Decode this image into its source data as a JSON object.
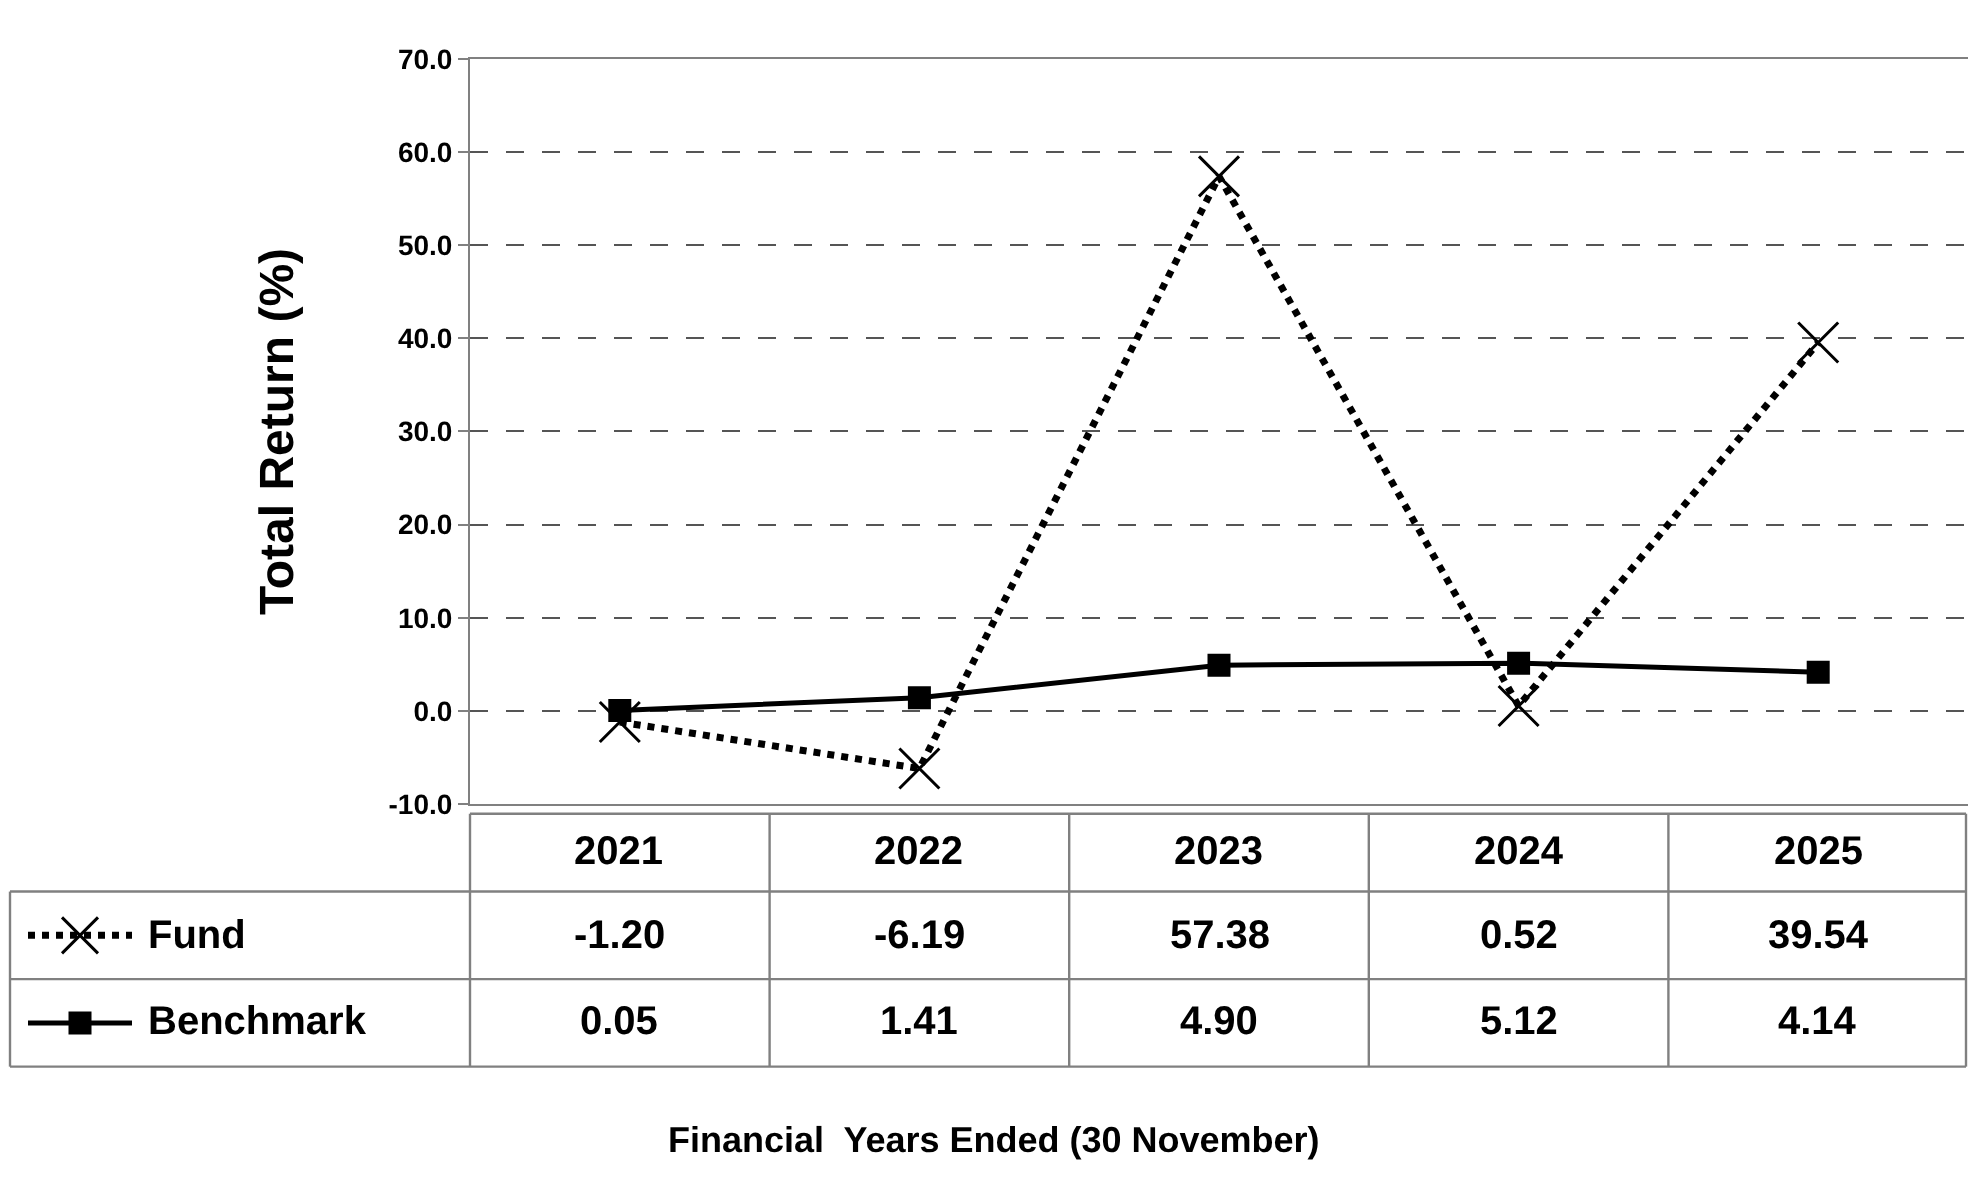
{
  "chart_data": {
    "type": "line",
    "annotations": [
      "Financial  Years Ended (30 November)"
    ],
    "ylabel": "Total Return (%)",
    "categories": [
      "2021",
      "2022",
      "2023",
      "2024",
      "2025"
    ],
    "series": [
      {
        "name": "Fund",
        "color": "#000000",
        "values": [
          -1.2,
          -6.19,
          57.38,
          0.52,
          39.54
        ],
        "value_labels": [
          "-1.20",
          "-6.19",
          "57.38",
          "0.52",
          "39.54"
        ],
        "marker": "cross",
        "line_style": "dotted"
      },
      {
        "name": "Benchmark",
        "color": "#000000",
        "values": [
          0.05,
          1.41,
          4.9,
          5.12,
          4.14
        ],
        "value_labels": [
          "0.05",
          "1.41",
          "4.90",
          "5.12",
          "4.14"
        ],
        "marker": "square",
        "line_style": "solid"
      }
    ],
    "ylim": [
      -10,
      70
    ],
    "yticks": [
      {
        "value": -10,
        "label": "-10.0"
      },
      {
        "value": 0,
        "label": "0.0"
      },
      {
        "value": 10,
        "label": "10.0"
      },
      {
        "value": 20,
        "label": "20.0"
      },
      {
        "value": 30,
        "label": "30.0"
      },
      {
        "value": 40,
        "label": "40.0"
      },
      {
        "value": 50,
        "label": "50.0"
      },
      {
        "value": 60,
        "label": "60.0"
      },
      {
        "value": 70,
        "label": "70.0"
      }
    ],
    "grid": "y",
    "legend": "bottom left",
    "data_labels": true
  }
}
